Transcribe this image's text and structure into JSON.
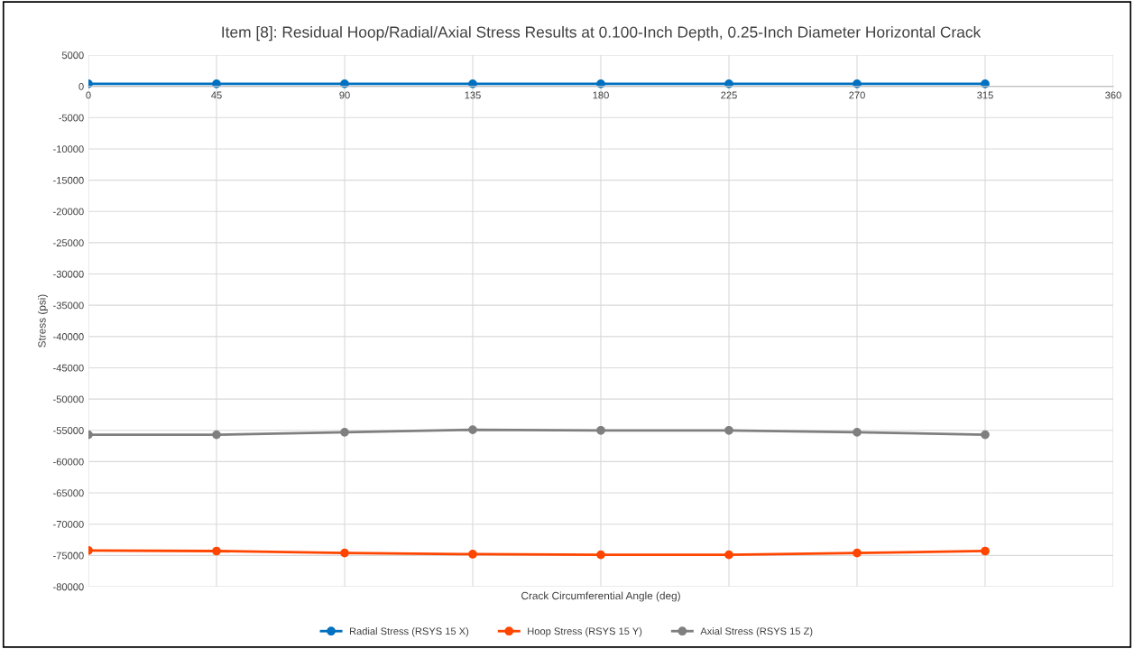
{
  "chart_data": {
    "type": "line",
    "title": "Item [8]: Residual Hoop/Radial/Axial Stress Results at 0.100-Inch Depth, 0.25-Inch Diameter Horizontal Crack",
    "xlabel": "Crack Circumferential Angle (deg)",
    "ylabel": "Stress (psi)",
    "x": [
      0,
      45,
      90,
      135,
      180,
      225,
      270,
      315
    ],
    "series": [
      {
        "name": "Radial Stress (RSYS 15 X)",
        "color": "#0070c0",
        "values": [
          400,
          400,
          400,
          400,
          400,
          400,
          400,
          400
        ]
      },
      {
        "name": "Hoop Stress (RSYS 15 Y)",
        "color": "#ff4500",
        "values": [
          -74200,
          -74300,
          -74600,
          -74800,
          -74900,
          -74900,
          -74600,
          -74300
        ]
      },
      {
        "name": "Axial Stress (RSYS 15 Z)",
        "color": "#7f7f7f",
        "values": [
          -55700,
          -55700,
          -55300,
          -54900,
          -55000,
          -55000,
          -55300,
          -55700
        ]
      }
    ],
    "xlim": [
      0,
      360
    ],
    "xticks": [
      0,
      45,
      90,
      135,
      180,
      225,
      270,
      315,
      360
    ],
    "ylim": [
      -80000,
      5000
    ],
    "yticks": [
      -80000,
      -75000,
      -70000,
      -65000,
      -60000,
      -55000,
      -50000,
      -45000,
      -40000,
      -35000,
      -30000,
      -25000,
      -20000,
      -15000,
      -10000,
      -5000,
      0,
      5000
    ],
    "grid": true,
    "legend": "bottom",
    "marker": "circle",
    "line_style": "solid"
  }
}
